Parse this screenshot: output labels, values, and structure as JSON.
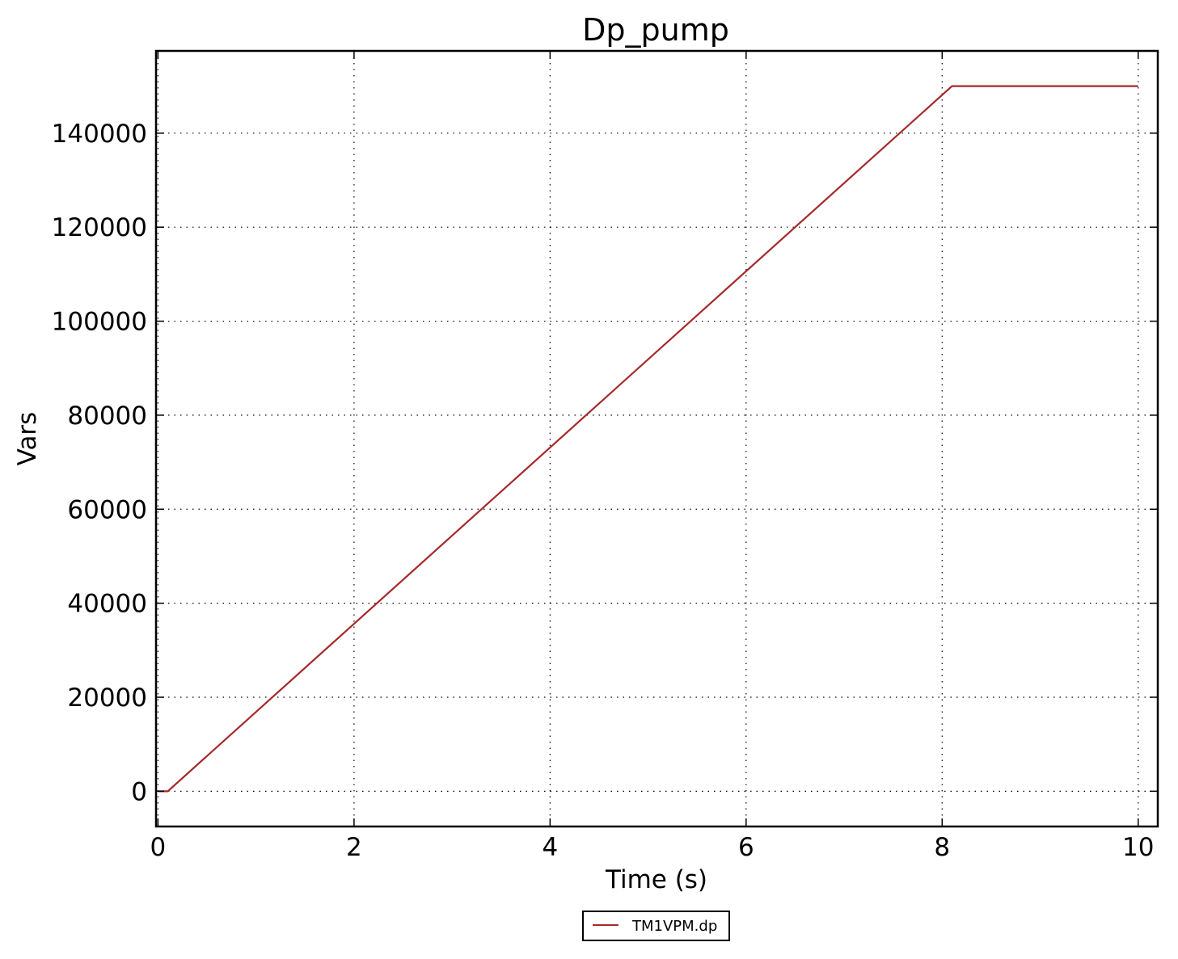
{
  "chart_data": {
    "type": "line",
    "title": "Dp_pump",
    "xlabel": "Time (s)",
    "ylabel": "Vars",
    "xlim": [
      -0.02,
      10.2
    ],
    "ylim": [
      -7500,
      157500
    ],
    "x_ticks": [
      0,
      2,
      4,
      6,
      8,
      10
    ],
    "x_tick_labels": [
      "0",
      "2",
      "4",
      "6",
      "8",
      "10"
    ],
    "y_ticks": [
      0,
      20000,
      40000,
      60000,
      80000,
      100000,
      120000,
      140000
    ],
    "y_tick_labels": [
      "0",
      "20000",
      "40000",
      "60000",
      "80000",
      "100000",
      "120000",
      "140000"
    ],
    "grid": true,
    "grid_style": "dotted",
    "legend_position": "bottom-center-outside",
    "series": [
      {
        "name": "TM1VPM.dp",
        "color": "#a52a2a",
        "x": [
          0.0,
          0.1,
          8.1,
          10.0
        ],
        "y": [
          0,
          0,
          150000,
          150000
        ]
      }
    ]
  }
}
